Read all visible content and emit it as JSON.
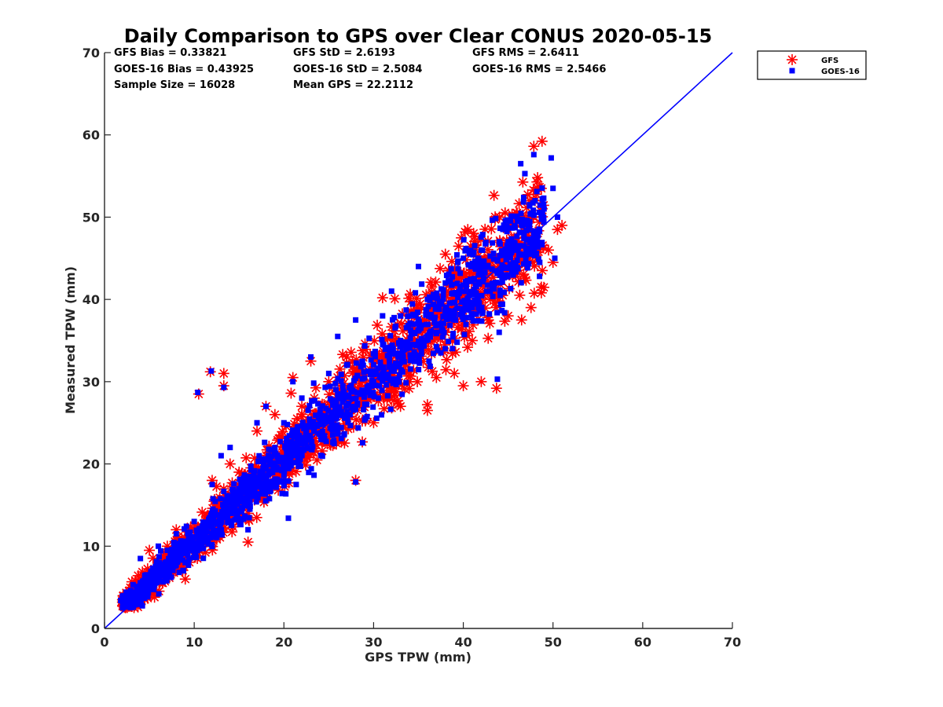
{
  "chart_data": {
    "type": "scatter",
    "title": "Daily Comparison to GPS over Clear CONUS 2020-05-15",
    "xlabel": "GPS TPW (mm)",
    "ylabel": "Measured TPW (mm)",
    "xlim": [
      0,
      70
    ],
    "ylim": [
      0,
      70
    ],
    "xticks": [
      "0",
      "10",
      "20",
      "30",
      "40",
      "50",
      "60",
      "70"
    ],
    "yticks": [
      "0",
      "10",
      "20",
      "30",
      "40",
      "50",
      "60",
      "70"
    ],
    "grid": false,
    "legend_position": "outside-top-right",
    "stats": [
      "GFS Bias = 0.33821",
      "GFS StD = 2.6193",
      "GFS RMS = 2.6411",
      "GOES-16 Bias = 0.43925",
      "GOES-16 StD = 2.5084",
      "GOES-16 RMS = 2.5466",
      "Sample Size = 16028",
      "Mean GPS = 22.2112"
    ],
    "reference_line": {
      "name": "1:1 line",
      "x": [
        0,
        70
      ],
      "y": [
        0,
        70
      ],
      "color": "#0000ff"
    },
    "series": [
      {
        "name": "GFS",
        "marker": "asterisk",
        "color": "#ff0000",
        "points": [
          [
            2,
            3.2
          ],
          [
            3,
            3.0
          ],
          [
            4,
            5.5
          ],
          [
            5,
            9.5
          ],
          [
            6,
            8
          ],
          [
            7,
            10
          ],
          [
            8,
            12
          ],
          [
            9,
            6
          ],
          [
            10,
            12
          ],
          [
            10.5,
            28.5
          ],
          [
            11.8,
            31.2
          ],
          [
            13.3,
            31.0
          ],
          [
            13.3,
            29.5
          ],
          [
            12,
            18
          ],
          [
            14,
            20
          ],
          [
            15,
            19
          ],
          [
            16,
            10.5
          ],
          [
            17,
            24
          ],
          [
            18,
            27
          ],
          [
            19,
            26
          ],
          [
            20,
            22
          ],
          [
            21,
            30.5
          ],
          [
            20.8,
            28.6
          ],
          [
            22,
            27
          ],
          [
            23,
            32.5
          ],
          [
            24,
            25
          ],
          [
            25,
            30
          ],
          [
            26,
            28
          ],
          [
            27,
            33
          ],
          [
            28,
            18
          ],
          [
            30,
            25
          ],
          [
            31,
            40.2
          ],
          [
            32,
            34
          ],
          [
            33,
            27
          ],
          [
            34,
            30
          ],
          [
            35,
            36
          ],
          [
            36,
            27.2
          ],
          [
            36,
            26.5
          ],
          [
            37,
            30.5
          ],
          [
            38,
            45.5
          ],
          [
            39,
            31
          ],
          [
            40,
            29.5
          ],
          [
            40.5,
            48.5
          ],
          [
            41,
            35
          ],
          [
            42,
            30
          ],
          [
            43,
            40
          ],
          [
            43.7,
            29.2
          ],
          [
            44,
            44
          ],
          [
            45,
            38
          ],
          [
            46,
            50.5
          ],
          [
            46.5,
            37.5
          ],
          [
            47,
            45
          ],
          [
            48,
            52
          ],
          [
            48.7,
            53.5
          ],
          [
            48.7,
            41.5
          ],
          [
            48.7,
            40.8
          ],
          [
            49.5,
            46
          ],
          [
            50,
            44.5
          ],
          [
            50.5,
            48.5
          ],
          [
            51,
            49
          ]
        ]
      },
      {
        "name": "GOES-16",
        "marker": "square",
        "color": "#0000ff",
        "points": [
          [
            1.8,
            3.4
          ],
          [
            3,
            4
          ],
          [
            4,
            8.5
          ],
          [
            5,
            6
          ],
          [
            6,
            10
          ],
          [
            7,
            9.5
          ],
          [
            8,
            11.5
          ],
          [
            9,
            8
          ],
          [
            10,
            13
          ],
          [
            10.4,
            28.7
          ],
          [
            11.9,
            31.3
          ],
          [
            13.3,
            29.3
          ],
          [
            12,
            17.5
          ],
          [
            13,
            21
          ],
          [
            14,
            22
          ],
          [
            15,
            17
          ],
          [
            16,
            12
          ],
          [
            17,
            25
          ],
          [
            18,
            27
          ],
          [
            19,
            22
          ],
          [
            20,
            25
          ],
          [
            20.5,
            13.4
          ],
          [
            21,
            30
          ],
          [
            22,
            28
          ],
          [
            23,
            33
          ],
          [
            24,
            26
          ],
          [
            25,
            31
          ],
          [
            26,
            35.5
          ],
          [
            27,
            32
          ],
          [
            28,
            17.8
          ],
          [
            28,
            37.5
          ],
          [
            30,
            30
          ],
          [
            31,
            38
          ],
          [
            32,
            41
          ],
          [
            33,
            35
          ],
          [
            34,
            38
          ],
          [
            35,
            44
          ],
          [
            36,
            40
          ],
          [
            37,
            36
          ],
          [
            38,
            42
          ],
          [
            39,
            38
          ],
          [
            40,
            45
          ],
          [
            41,
            39
          ],
          [
            42,
            46
          ],
          [
            43,
            41
          ],
          [
            43.8,
            30.3
          ],
          [
            44,
            36
          ],
          [
            45,
            47
          ],
          [
            46,
            50
          ],
          [
            46.4,
            56.5
          ],
          [
            47,
            46
          ],
          [
            48,
            52
          ],
          [
            48.5,
            42.8
          ],
          [
            49,
            51
          ],
          [
            49.8,
            57.2
          ],
          [
            50,
            53.5
          ],
          [
            50.2,
            45
          ],
          [
            50.5,
            50
          ]
        ]
      }
    ]
  }
}
